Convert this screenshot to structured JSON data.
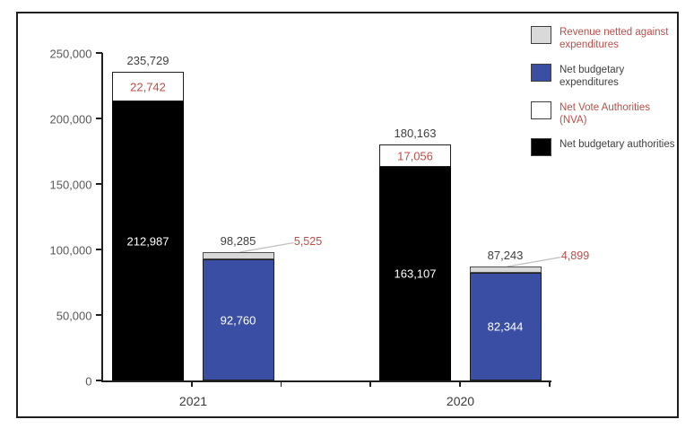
{
  "chart_data": {
    "type": "bar",
    "stacked": true,
    "title": "",
    "xlabel": "",
    "ylabel": "",
    "ylim": [
      0,
      250000
    ],
    "yticks": [
      0,
      50000,
      100000,
      150000,
      200000,
      250000
    ],
    "ytick_labels": [
      "0",
      "50,000",
      "100,000",
      "150,000",
      "200,000",
      "250,000"
    ],
    "categories": [
      "2021",
      "2020"
    ],
    "grid": false,
    "legend_position": "top-right",
    "colors": {
      "revenue_netted": "#d9d9d9",
      "net_budgetary_expenditures": "#3a4ea3",
      "net_vote_authorities": "#ffffff",
      "net_budgetary_authorities": "#000000",
      "red_label": "#be4b48",
      "dark_label": "#404040",
      "axis_label": "#595959",
      "leader_line": "#bfbfbf"
    },
    "bars": [
      {
        "category": "2021",
        "name": "net-authorities-2021",
        "total": 235729,
        "total_label": "235,729",
        "segments": [
          {
            "series": "net_budgetary_authorities",
            "value": 212987,
            "label": "212,987",
            "label_style": "light"
          },
          {
            "series": "net_vote_authorities",
            "value": 22742,
            "label": "22,742",
            "label_style": "red-inside"
          }
        ]
      },
      {
        "category": "2021",
        "name": "net-expenditures-2021",
        "total": 98285,
        "total_label": "98,285",
        "segments": [
          {
            "series": "net_budgetary_expenditures",
            "value": 92760,
            "label": "92,760",
            "label_style": "light"
          },
          {
            "series": "revenue_netted",
            "value": 5525,
            "label": "5,525",
            "label_style": "red-callout"
          }
        ]
      },
      {
        "category": "2020",
        "name": "net-authorities-2020",
        "total": 180163,
        "total_label": "180,163",
        "segments": [
          {
            "series": "net_budgetary_authorities",
            "value": 163107,
            "label": "163,107",
            "label_style": "light"
          },
          {
            "series": "net_vote_authorities",
            "value": 17056,
            "label": "17,056",
            "label_style": "red-inside"
          }
        ]
      },
      {
        "category": "2020",
        "name": "net-expenditures-2020",
        "total": 87243,
        "total_label": "87,243",
        "segments": [
          {
            "series": "net_budgetary_expenditures",
            "value": 82344,
            "label": "82,344",
            "label_style": "light"
          },
          {
            "series": "revenue_netted",
            "value": 4899,
            "label": "4,899",
            "label_style": "red-callout"
          }
        ]
      }
    ],
    "legend": [
      {
        "series": "revenue_netted",
        "label": "Revenue netted against expenditures",
        "text_color": "red"
      },
      {
        "series": "net_budgetary_expenditures",
        "label": "Net budgetary expenditures",
        "text_color": "dark"
      },
      {
        "series": "net_vote_authorities",
        "label": "Net Vote Authorities (NVA)",
        "text_color": "red"
      },
      {
        "series": "net_budgetary_authorities",
        "label": "Net budgetary authorities",
        "text_color": "dark"
      }
    ]
  }
}
